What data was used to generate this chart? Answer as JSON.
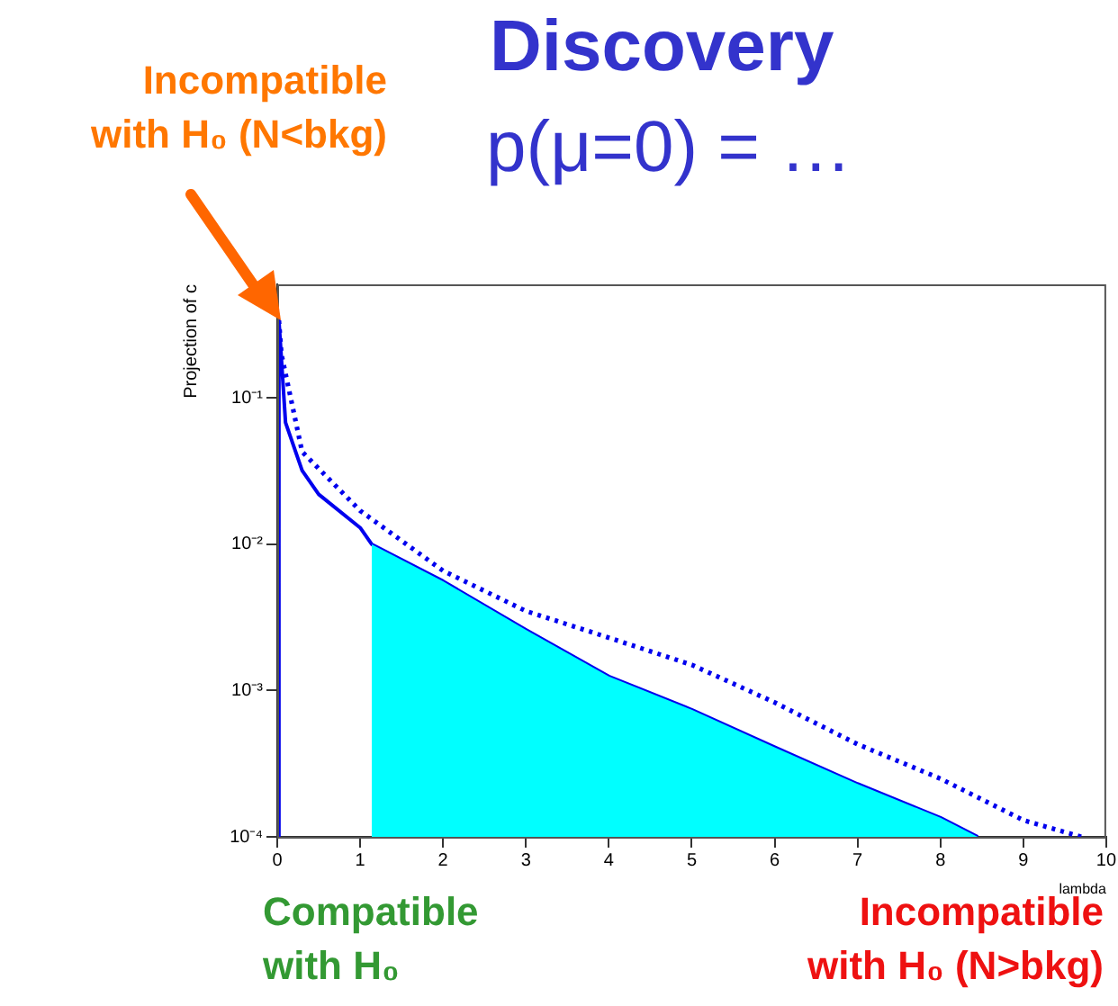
{
  "chart_data": {
    "type": "line",
    "title": "Discovery",
    "subtitle": "p(μ=0) = …",
    "ylabel": "Projection of c",
    "xlabel": "lambda",
    "annotations": [
      "Incompatible\nwith H₀ (N<bkg)",
      "Compatible\nwith H₀",
      "Incompatible\nwith H₀ (N>bkg)"
    ],
    "xlim": [
      0,
      10
    ],
    "xticks": [
      0,
      1,
      2,
      3,
      4,
      5,
      6,
      7,
      8,
      9,
      10
    ],
    "ylim": [
      0.0001,
      0.6
    ],
    "yticks": [
      {
        "value": 0.0001,
        "label": "10⁻⁴"
      },
      {
        "value": 0.001,
        "label": "10⁻³"
      },
      {
        "value": 0.01,
        "label": "10⁻²"
      },
      {
        "value": 0.1,
        "label": "10⁻¹"
      }
    ],
    "log": "y",
    "grid": false,
    "legend": false,
    "marker": "none",
    "series": [
      {
        "type": "area",
        "color": "#00ffff",
        "x": [
          1.14,
          2,
          3,
          4,
          5,
          6,
          7,
          8,
          8.45
        ],
        "values": [
          0.01,
          0.0056,
          0.0026,
          0.00125,
          0.00074,
          0.00041,
          0.00023,
          0.000135,
          0.0001
        ]
      },
      {
        "color": "#0000ee",
        "line_style": "dotted",
        "x": [
          0.02,
          0.05,
          0.3,
          1,
          2,
          3,
          4,
          5,
          6,
          7,
          8,
          9,
          9.7
        ],
        "values": [
          0.34,
          0.2,
          0.043,
          0.017,
          0.0066,
          0.0035,
          0.0023,
          0.0015,
          0.00083,
          0.00043,
          0.00025,
          0.00013,
          0.0001
        ]
      },
      {
        "color": "#0000ee",
        "line_style": "solid",
        "x": [
          0,
          0.02,
          0.1,
          0.3,
          0.5,
          1,
          1.14,
          2,
          3,
          4,
          5,
          6,
          7,
          8,
          8.45
        ],
        "values": [
          0.0001,
          0.34,
          0.068,
          0.032,
          0.022,
          0.013,
          0.01,
          0.0056,
          0.0026,
          0.00125,
          0.00074,
          0.00041,
          0.00023,
          0.000135,
          0.0001
        ]
      }
    ]
  }
}
